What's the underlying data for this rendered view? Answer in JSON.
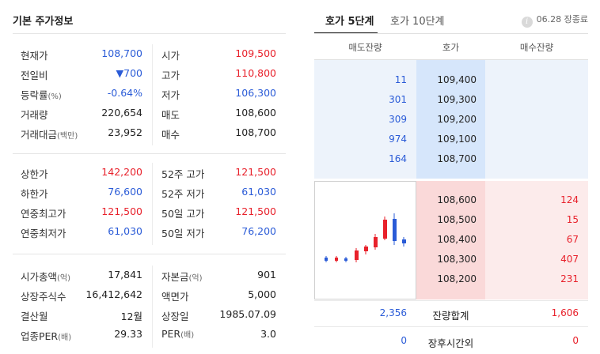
{
  "left": {
    "title": "기본 주가정보",
    "section1": [
      {
        "l1": "현재가",
        "u1": "",
        "v1": "108,700",
        "c1": "blue",
        "l2": "시가",
        "u2": "",
        "v2": "109,500",
        "c2": "red"
      },
      {
        "l1": "전일비",
        "u1": "",
        "v1": "▼700",
        "c1": "blue",
        "l2": "고가",
        "u2": "",
        "v2": "110,800",
        "c2": "red"
      },
      {
        "l1": "등락률",
        "u1": "(%)",
        "v1": "-0.64%",
        "c1": "blue",
        "l2": "저가",
        "u2": "",
        "v2": "106,300",
        "c2": "blue"
      },
      {
        "l1": "거래량",
        "u1": "",
        "v1": "220,654",
        "c1": "dark",
        "l2": "매도",
        "u2": "",
        "v2": "108,600",
        "c2": "dark"
      },
      {
        "l1": "거래대금",
        "u1": "(백만)",
        "v1": "23,952",
        "c1": "dark",
        "l2": "매수",
        "u2": "",
        "v2": "108,700",
        "c2": "dark"
      }
    ],
    "section2": [
      {
        "l1": "상한가",
        "u1": "",
        "v1": "142,200",
        "c1": "red",
        "l2": "52주 고가",
        "u2": "",
        "v2": "121,500",
        "c2": "red"
      },
      {
        "l1": "하한가",
        "u1": "",
        "v1": "76,600",
        "c1": "blue",
        "l2": "52주 저가",
        "u2": "",
        "v2": "61,030",
        "c2": "blue"
      },
      {
        "l1": "연중최고가",
        "u1": "",
        "v1": "121,500",
        "c1": "red",
        "l2": "50일 고가",
        "u2": "",
        "v2": "121,500",
        "c2": "red"
      },
      {
        "l1": "연중최저가",
        "u1": "",
        "v1": "61,030",
        "c1": "blue",
        "l2": "50일 저가",
        "u2": "",
        "v2": "76,200",
        "c2": "blue"
      }
    ],
    "section3": [
      {
        "l1": "시가총액",
        "u1": "(억)",
        "v1": "17,841",
        "c1": "dark",
        "l2": "자본금",
        "u2": "(억)",
        "v2": "901",
        "c2": "dark"
      },
      {
        "l1": "상장주식수",
        "u1": "",
        "v1": "16,412,642",
        "c1": "dark",
        "l2": "액면가",
        "u2": "",
        "v2": "5,000",
        "c2": "dark"
      },
      {
        "l1": "결산월",
        "u1": "",
        "v1": "12월",
        "c1": "dark",
        "l2": "상장일",
        "u2": "",
        "v2": "1985.07.09",
        "c2": "dark"
      },
      {
        "l1": "업종PER",
        "u1": "(배)",
        "v1": "29.33",
        "c1": "dark",
        "l2": "PER",
        "u2": "(배)",
        "v2": "3.0",
        "c2": "dark"
      }
    ]
  },
  "right": {
    "tabs": [
      "호가 5단계",
      "호가 10단계"
    ],
    "status": "06.28 장종료",
    "info_icon": "info-icon",
    "headers": [
      "매도잔량",
      "호가",
      "매수잔량"
    ],
    "asks": [
      {
        "qty": "11",
        "price": "109,400"
      },
      {
        "qty": "301",
        "price": "109,300"
      },
      {
        "qty": "309",
        "price": "109,200"
      },
      {
        "qty": "974",
        "price": "109,100"
      },
      {
        "qty": "164",
        "price": "108,700"
      }
    ],
    "bids": [
      {
        "price": "108,600",
        "qty": "124"
      },
      {
        "price": "108,500",
        "qty": "15"
      },
      {
        "price": "108,400",
        "qty": "67"
      },
      {
        "price": "108,300",
        "qty": "407"
      },
      {
        "price": "108,200",
        "qty": "231"
      }
    ],
    "summary": [
      {
        "left": "2,356",
        "label": "잔량합계",
        "right": "1,606"
      },
      {
        "left": "0",
        "label": "장후시간외",
        "right": "0"
      }
    ],
    "colors": {
      "up": "#e8212b",
      "down": "#2a5bd7"
    }
  }
}
